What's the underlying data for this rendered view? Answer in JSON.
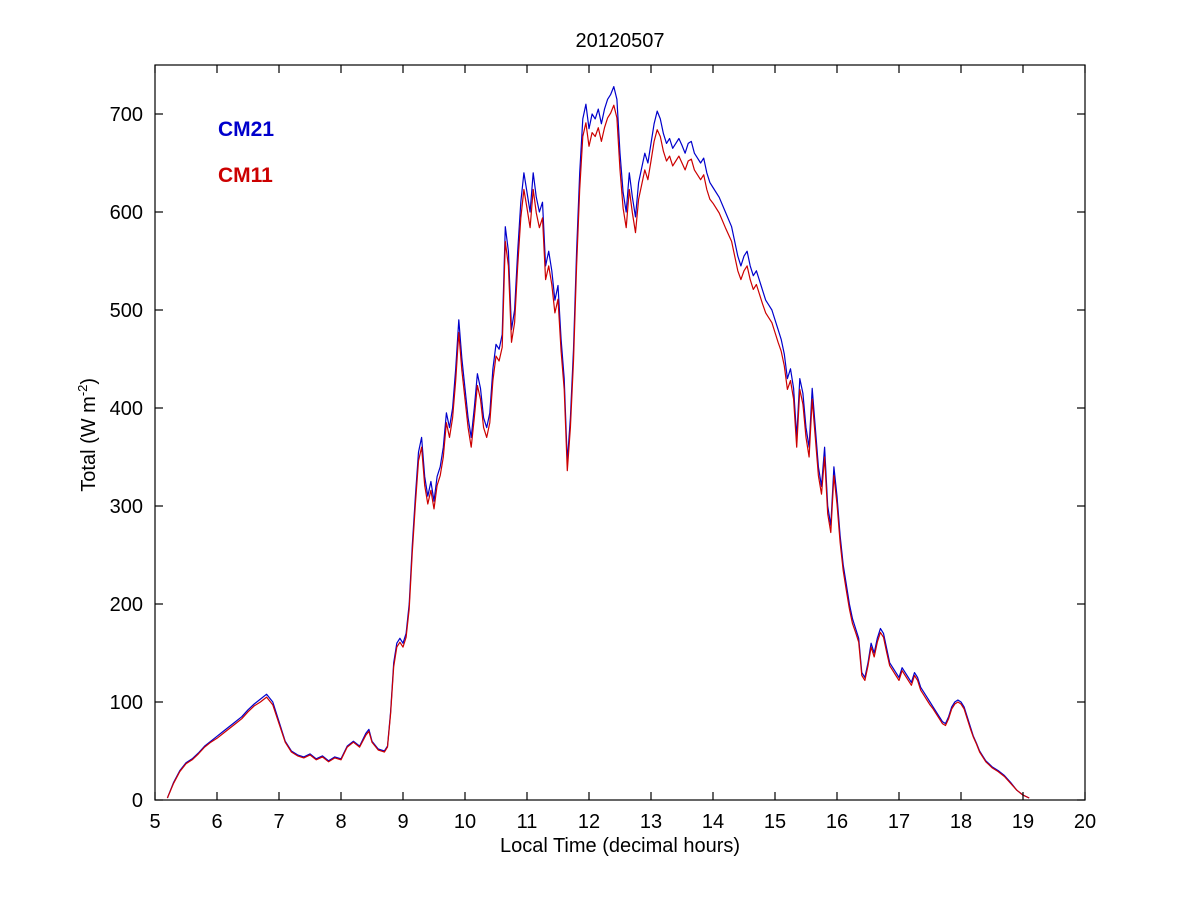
{
  "chart_data": {
    "type": "line",
    "title": "20120507",
    "xlabel": "Local Time (decimal hours)",
    "ylabel_parts": {
      "prefix": "Total (W m",
      "sup": "-2",
      "suffix": ")"
    },
    "xlim": [
      5,
      20
    ],
    "ylim": [
      0,
      750
    ],
    "xticks": [
      5,
      6,
      7,
      8,
      9,
      10,
      11,
      12,
      13,
      14,
      15,
      16,
      17,
      18,
      19,
      20
    ],
    "yticks": [
      0,
      100,
      200,
      300,
      400,
      500,
      600,
      700
    ],
    "grid": false,
    "legend_position": "upper-left-inside",
    "background_color": "#ffffff",
    "axis_color": "#000000",
    "series": [
      {
        "name": "CM21",
        "color": "#0000cc"
      },
      {
        "name": "CM11",
        "color": "#cc0000"
      }
    ],
    "points_format": [
      "x_decimal_hours",
      "CM21_Wm2",
      "CM11_Wm2"
    ],
    "points": [
      [
        5.2,
        2,
        2
      ],
      [
        5.3,
        18,
        17
      ],
      [
        5.4,
        30,
        29
      ],
      [
        5.5,
        38,
        37
      ],
      [
        5.6,
        42,
        41
      ],
      [
        5.7,
        48,
        47
      ],
      [
        5.8,
        55,
        54
      ],
      [
        5.9,
        60,
        59
      ],
      [
        6.0,
        65,
        63
      ],
      [
        6.1,
        70,
        68
      ],
      [
        6.2,
        75,
        73
      ],
      [
        6.3,
        80,
        78
      ],
      [
        6.4,
        85,
        83
      ],
      [
        6.5,
        92,
        90
      ],
      [
        6.6,
        98,
        96
      ],
      [
        6.7,
        103,
        100
      ],
      [
        6.8,
        108,
        105
      ],
      [
        6.9,
        100,
        97
      ],
      [
        7.0,
        80,
        78
      ],
      [
        7.1,
        60,
        59
      ],
      [
        7.2,
        50,
        49
      ],
      [
        7.3,
        46,
        45
      ],
      [
        7.4,
        44,
        43
      ],
      [
        7.5,
        47,
        46
      ],
      [
        7.6,
        42,
        41
      ],
      [
        7.7,
        45,
        44
      ],
      [
        7.8,
        40,
        39
      ],
      [
        7.9,
        44,
        43
      ],
      [
        8.0,
        42,
        41
      ],
      [
        8.1,
        55,
        54
      ],
      [
        8.2,
        60,
        59
      ],
      [
        8.3,
        55,
        54
      ],
      [
        8.4,
        68,
        66
      ],
      [
        8.45,
        72,
        70
      ],
      [
        8.5,
        60,
        59
      ],
      [
        8.6,
        52,
        51
      ],
      [
        8.7,
        50,
        49
      ],
      [
        8.75,
        55,
        54
      ],
      [
        8.8,
        90,
        88
      ],
      [
        8.85,
        140,
        136
      ],
      [
        8.9,
        160,
        156
      ],
      [
        8.95,
        165,
        161
      ],
      [
        9.0,
        160,
        156
      ],
      [
        9.05,
        170,
        166
      ],
      [
        9.1,
        200,
        195
      ],
      [
        9.15,
        260,
        253
      ],
      [
        9.2,
        310,
        302
      ],
      [
        9.25,
        355,
        346
      ],
      [
        9.3,
        370,
        360
      ],
      [
        9.35,
        330,
        321
      ],
      [
        9.4,
        310,
        302
      ],
      [
        9.45,
        325,
        316
      ],
      [
        9.5,
        305,
        297
      ],
      [
        9.55,
        330,
        321
      ],
      [
        9.6,
        340,
        331
      ],
      [
        9.65,
        360,
        350
      ],
      [
        9.7,
        395,
        385
      ],
      [
        9.75,
        380,
        370
      ],
      [
        9.8,
        400,
        390
      ],
      [
        9.85,
        440,
        428
      ],
      [
        9.9,
        490,
        477
      ],
      [
        9.95,
        450,
        438
      ],
      [
        10.0,
        420,
        409
      ],
      [
        10.05,
        390,
        380
      ],
      [
        10.1,
        370,
        360
      ],
      [
        10.15,
        400,
        390
      ],
      [
        10.2,
        435,
        423
      ],
      [
        10.25,
        420,
        409
      ],
      [
        10.3,
        390,
        380
      ],
      [
        10.35,
        380,
        370
      ],
      [
        10.4,
        395,
        385
      ],
      [
        10.45,
        440,
        428
      ],
      [
        10.5,
        465,
        453
      ],
      [
        10.55,
        460,
        448
      ],
      [
        10.6,
        475,
        462
      ],
      [
        10.65,
        585,
        570
      ],
      [
        10.7,
        560,
        545
      ],
      [
        10.75,
        480,
        467
      ],
      [
        10.8,
        500,
        487
      ],
      [
        10.85,
        560,
        545
      ],
      [
        10.9,
        610,
        594
      ],
      [
        10.95,
        640,
        623
      ],
      [
        11.0,
        620,
        604
      ],
      [
        11.05,
        600,
        584
      ],
      [
        11.1,
        640,
        623
      ],
      [
        11.15,
        615,
        599
      ],
      [
        11.2,
        600,
        584
      ],
      [
        11.25,
        610,
        594
      ],
      [
        11.3,
        545,
        531
      ],
      [
        11.35,
        560,
        545
      ],
      [
        11.4,
        540,
        526
      ],
      [
        11.45,
        510,
        497
      ],
      [
        11.5,
        525,
        511
      ],
      [
        11.55,
        470,
        458
      ],
      [
        11.6,
        430,
        419
      ],
      [
        11.65,
        345,
        336
      ],
      [
        11.7,
        390,
        380
      ],
      [
        11.75,
        460,
        448
      ],
      [
        11.8,
        560,
        545
      ],
      [
        11.85,
        640,
        623
      ],
      [
        11.9,
        695,
        677
      ],
      [
        11.95,
        710,
        691
      ],
      [
        12.0,
        685,
        667
      ],
      [
        12.05,
        700,
        681
      ],
      [
        12.1,
        695,
        677
      ],
      [
        12.15,
        705,
        686
      ],
      [
        12.2,
        690,
        672
      ],
      [
        12.25,
        705,
        686
      ],
      [
        12.3,
        715,
        696
      ],
      [
        12.35,
        720,
        701
      ],
      [
        12.4,
        728,
        709
      ],
      [
        12.45,
        715,
        696
      ],
      [
        12.5,
        660,
        643
      ],
      [
        12.55,
        620,
        604
      ],
      [
        12.6,
        600,
        584
      ],
      [
        12.65,
        640,
        623
      ],
      [
        12.7,
        615,
        599
      ],
      [
        12.75,
        595,
        579
      ],
      [
        12.8,
        630,
        613
      ],
      [
        12.85,
        645,
        628
      ],
      [
        12.9,
        660,
        643
      ],
      [
        12.95,
        650,
        633
      ],
      [
        13.0,
        670,
        652
      ],
      [
        13.05,
        690,
        672
      ],
      [
        13.1,
        703,
        684
      ],
      [
        13.15,
        695,
        677
      ],
      [
        13.2,
        680,
        662
      ],
      [
        13.25,
        670,
        652
      ],
      [
        13.3,
        675,
        657
      ],
      [
        13.35,
        665,
        647
      ],
      [
        13.4,
        670,
        652
      ],
      [
        13.45,
        675,
        657
      ],
      [
        13.5,
        668,
        650
      ],
      [
        13.55,
        660,
        643
      ],
      [
        13.6,
        670,
        652
      ],
      [
        13.65,
        672,
        654
      ],
      [
        13.7,
        660,
        643
      ],
      [
        13.75,
        655,
        638
      ],
      [
        13.8,
        650,
        633
      ],
      [
        13.85,
        655,
        638
      ],
      [
        13.9,
        640,
        623
      ],
      [
        13.95,
        630,
        613
      ],
      [
        14.0,
        625,
        609
      ],
      [
        14.1,
        615,
        599
      ],
      [
        14.2,
        600,
        584
      ],
      [
        14.3,
        585,
        570
      ],
      [
        14.35,
        570,
        555
      ],
      [
        14.4,
        555,
        540
      ],
      [
        14.45,
        545,
        531
      ],
      [
        14.5,
        555,
        540
      ],
      [
        14.55,
        560,
        545
      ],
      [
        14.6,
        545,
        531
      ],
      [
        14.65,
        535,
        521
      ],
      [
        14.7,
        540,
        526
      ],
      [
        14.75,
        530,
        516
      ],
      [
        14.8,
        520,
        506
      ],
      [
        14.85,
        510,
        497
      ],
      [
        14.9,
        505,
        492
      ],
      [
        14.95,
        500,
        487
      ],
      [
        15.0,
        490,
        477
      ],
      [
        15.05,
        480,
        467
      ],
      [
        15.1,
        470,
        458
      ],
      [
        15.15,
        455,
        443
      ],
      [
        15.2,
        430,
        419
      ],
      [
        15.25,
        440,
        428
      ],
      [
        15.3,
        420,
        409
      ],
      [
        15.35,
        370,
        360
      ],
      [
        15.4,
        430,
        419
      ],
      [
        15.45,
        415,
        404
      ],
      [
        15.5,
        380,
        370
      ],
      [
        15.55,
        360,
        350
      ],
      [
        15.6,
        420,
        409
      ],
      [
        15.65,
        380,
        370
      ],
      [
        15.7,
        340,
        331
      ],
      [
        15.75,
        320,
        312
      ],
      [
        15.8,
        360,
        350
      ],
      [
        15.85,
        300,
        292
      ],
      [
        15.9,
        280,
        273
      ],
      [
        15.95,
        340,
        331
      ],
      [
        16.0,
        310,
        302
      ],
      [
        16.05,
        270,
        263
      ],
      [
        16.1,
        240,
        234
      ],
      [
        16.15,
        220,
        214
      ],
      [
        16.2,
        200,
        195
      ],
      [
        16.25,
        185,
        180
      ],
      [
        16.3,
        175,
        171
      ],
      [
        16.35,
        165,
        161
      ],
      [
        16.4,
        130,
        127
      ],
      [
        16.45,
        125,
        122
      ],
      [
        16.5,
        140,
        137
      ],
      [
        16.55,
        160,
        156
      ],
      [
        16.6,
        150,
        146
      ],
      [
        16.65,
        165,
        161
      ],
      [
        16.7,
        175,
        171
      ],
      [
        16.75,
        170,
        166
      ],
      [
        16.8,
        155,
        151
      ],
      [
        16.85,
        140,
        137
      ],
      [
        16.9,
        135,
        132
      ],
      [
        16.95,
        130,
        127
      ],
      [
        17.0,
        125,
        122
      ],
      [
        17.05,
        135,
        132
      ],
      [
        17.1,
        130,
        127
      ],
      [
        17.15,
        125,
        122
      ],
      [
        17.2,
        120,
        117
      ],
      [
        17.25,
        130,
        127
      ],
      [
        17.3,
        125,
        122
      ],
      [
        17.35,
        115,
        112
      ],
      [
        17.4,
        110,
        107
      ],
      [
        17.45,
        105,
        102
      ],
      [
        17.5,
        100,
        97
      ],
      [
        17.55,
        95,
        93
      ],
      [
        17.6,
        90,
        88
      ],
      [
        17.65,
        85,
        83
      ],
      [
        17.7,
        80,
        78
      ],
      [
        17.75,
        78,
        76
      ],
      [
        17.8,
        85,
        83
      ],
      [
        17.85,
        95,
        93
      ],
      [
        17.9,
        100,
        98
      ],
      [
        17.95,
        102,
        100
      ],
      [
        18.0,
        100,
        98
      ],
      [
        18.05,
        95,
        93
      ],
      [
        18.1,
        85,
        83
      ],
      [
        18.15,
        75,
        73
      ],
      [
        18.2,
        65,
        64
      ],
      [
        18.25,
        58,
        57
      ],
      [
        18.3,
        50,
        49
      ],
      [
        18.35,
        45,
        44
      ],
      [
        18.4,
        40,
        39
      ],
      [
        18.45,
        37,
        36
      ],
      [
        18.5,
        34,
        33
      ],
      [
        18.6,
        30,
        29
      ],
      [
        18.7,
        25,
        24
      ],
      [
        18.8,
        18,
        17
      ],
      [
        18.9,
        10,
        10
      ],
      [
        19.0,
        5,
        5
      ],
      [
        19.1,
        2,
        2
      ]
    ]
  }
}
